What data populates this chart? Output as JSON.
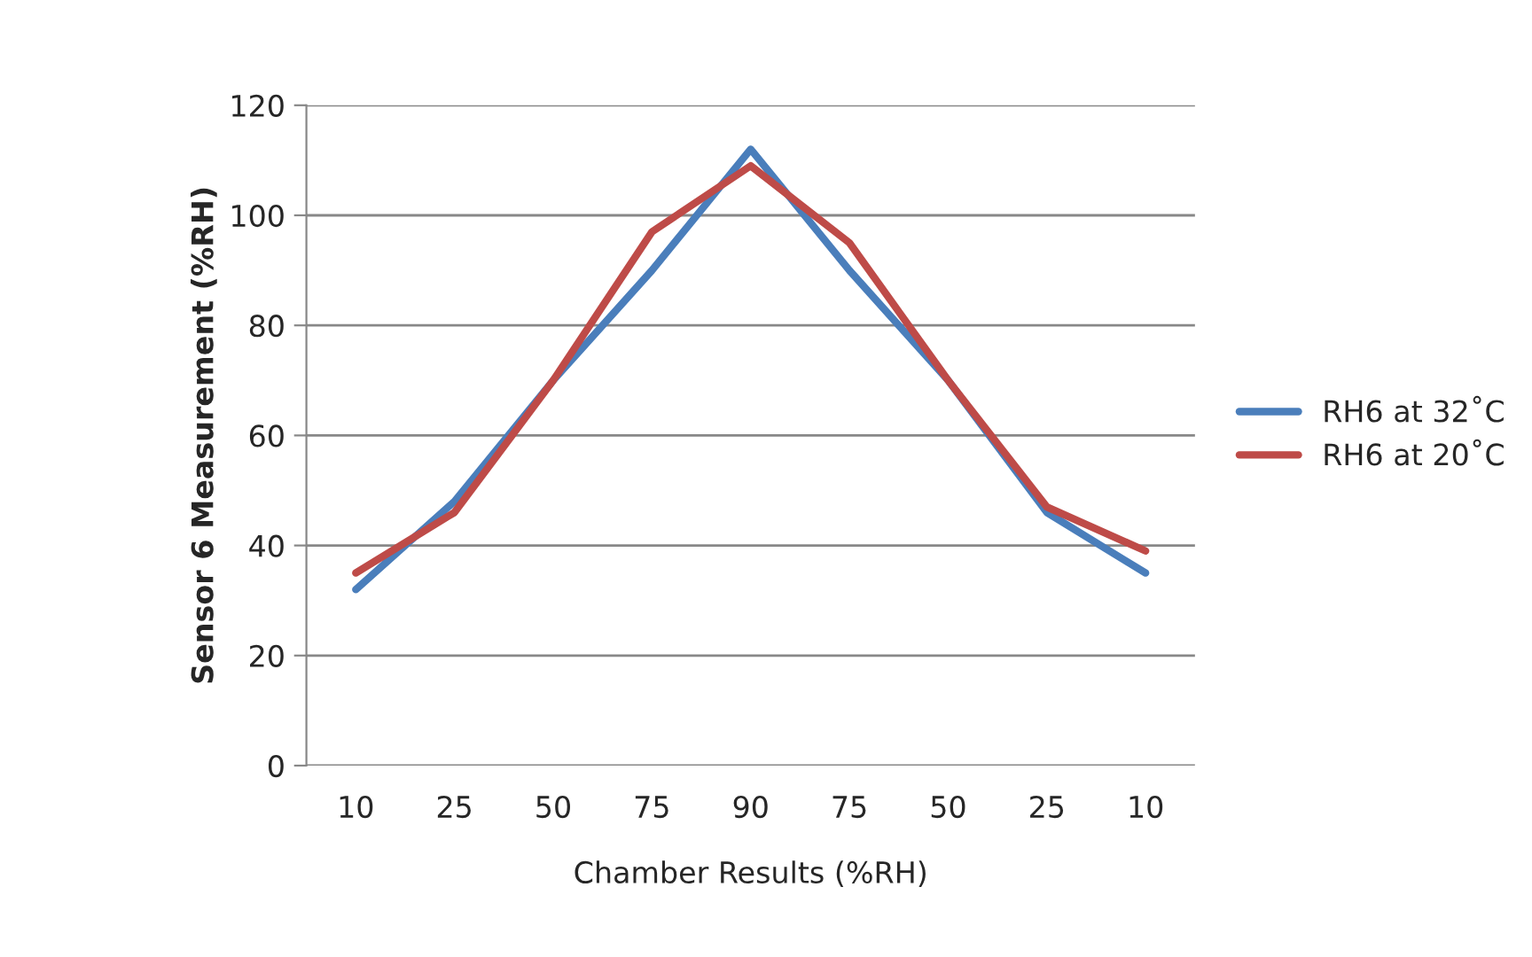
{
  "chart_data": {
    "type": "line",
    "xlabel": "Chamber Results (%RH)",
    "ylabel": "Sensor 6 Measurement (%RH)",
    "categories": [
      "10",
      "25",
      "50",
      "75",
      "90",
      "75",
      "50",
      "25",
      "10"
    ],
    "series": [
      {
        "name": "RH6 at 32˚C",
        "color": "#4a7ebb",
        "values": [
          32,
          48,
          70,
          90,
          112,
          90,
          70,
          46,
          35
        ]
      },
      {
        "name": "RH6 at 20˚C",
        "color": "#be4b48",
        "values": [
          35,
          46,
          70,
          97,
          109,
          95,
          70,
          47,
          39
        ]
      }
    ],
    "ylim": [
      0,
      120
    ],
    "yticks": [
      0,
      20,
      40,
      60,
      80,
      100,
      120
    ],
    "grid": "y",
    "legend": "right",
    "marker": "none"
  }
}
